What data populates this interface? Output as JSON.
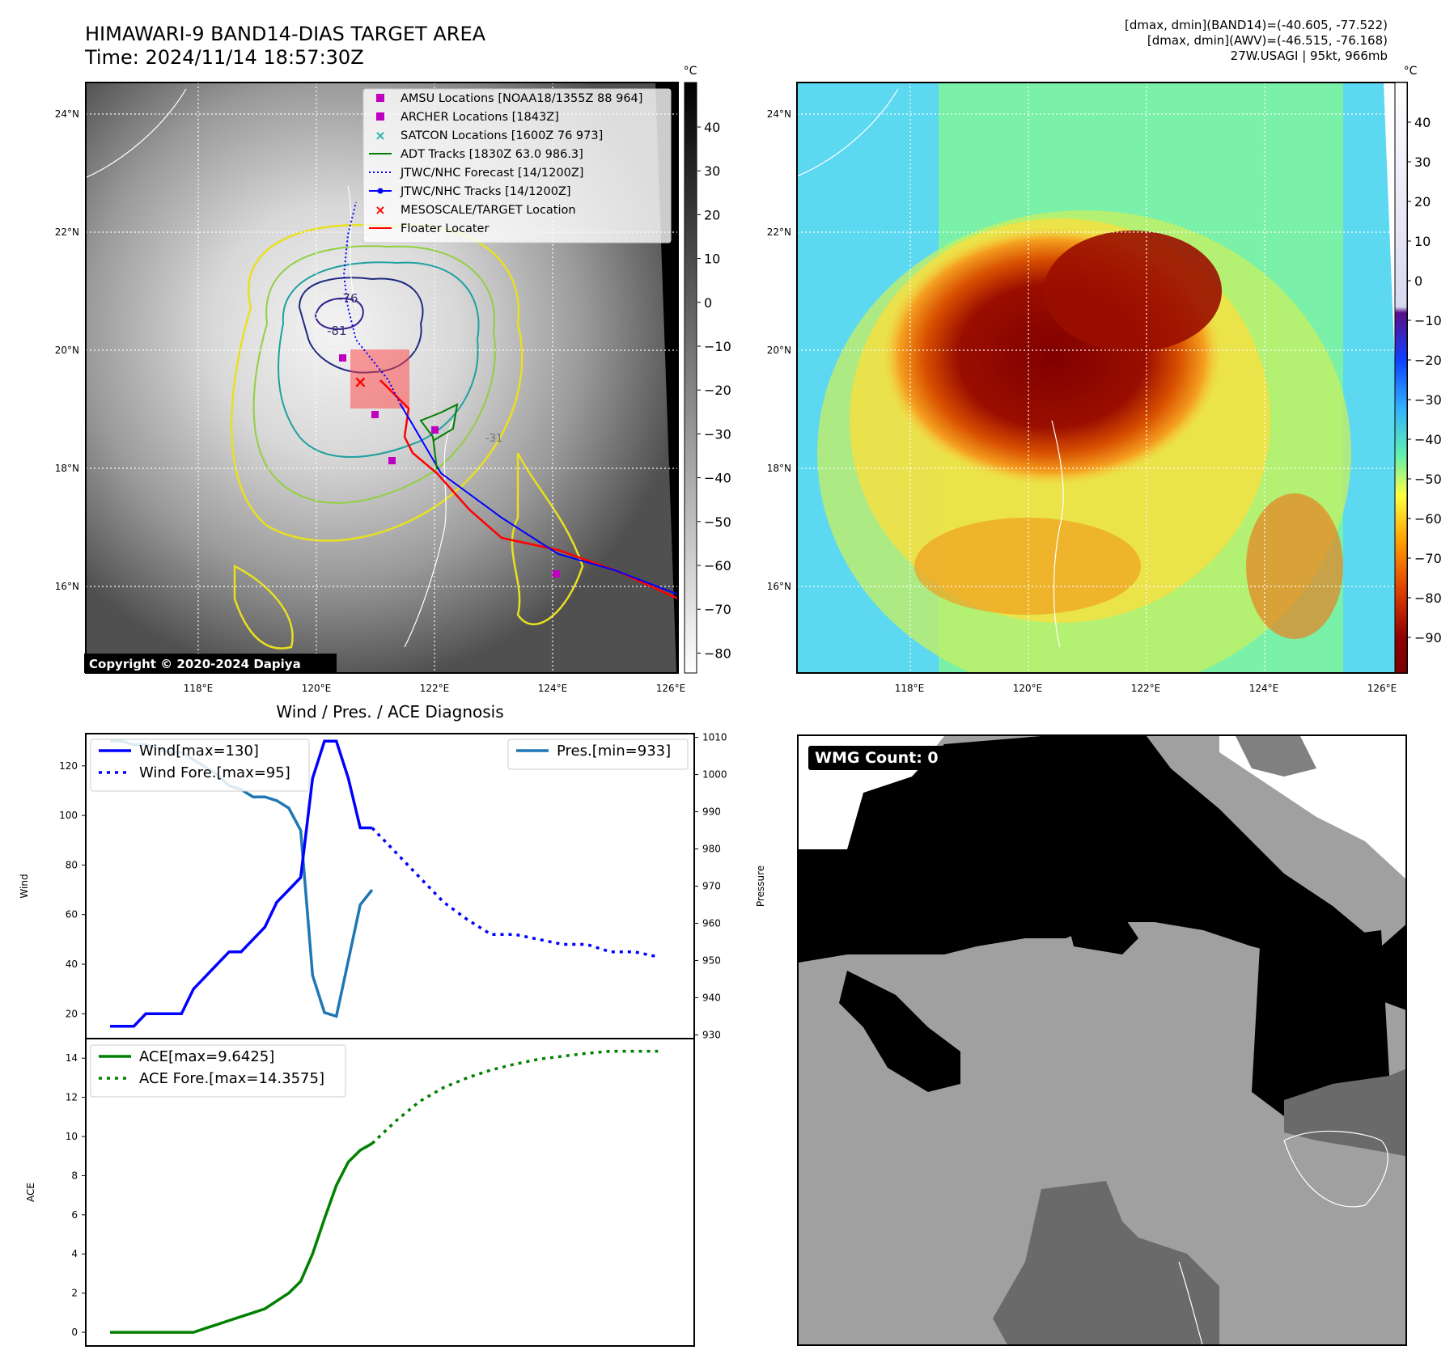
{
  "header": {
    "title_line1": "HIMAWARI-9 BAND14-DIAS TARGET AREA",
    "title_line2": "Time: 2024/11/14 18:57:30Z",
    "info_line1": "[dmax, dmin](BAND14)=(-40.605, -77.522)",
    "info_line2": "[dmax, dmin](AWV)=(-46.515, -76.168)",
    "info_line3": "27W.USAGI | 95kt, 966mb"
  },
  "maps": {
    "lon_ticks": [
      "118°E",
      "120°E",
      "122°E",
      "124°E",
      "126°E"
    ],
    "lat_ticks": [
      "24°N",
      "22°N",
      "20°N",
      "18°N",
      "16°N"
    ],
    "colorbar_unit": "°C",
    "left_colorbar_ticks": [
      "40",
      "30",
      "20",
      "10",
      "0",
      "−10",
      "−20",
      "−30",
      "−40",
      "−50",
      "−60",
      "−70",
      "−80"
    ],
    "right_colorbar_ticks": [
      "40",
      "30",
      "20",
      "10",
      "0",
      "−10",
      "−20",
      "−30",
      "−40",
      "−50",
      "−60",
      "−70",
      "−80",
      "−90"
    ],
    "copyright": "Copyright © 2020-2024 Dapiya",
    "contour_labels": [
      "-76",
      "-81",
      "-31"
    ],
    "legend": [
      {
        "label": "AMSU Locations [NOAA18/1355Z 88 964]",
        "color": "#c000c0",
        "marker": "square"
      },
      {
        "label": "ARCHER Locations [1843Z]",
        "color": "#c000c0",
        "marker": "square"
      },
      {
        "label": "SATCON Locations [1600Z 76 973]",
        "color": "#20b0b0",
        "marker": "x"
      },
      {
        "label": "ADT Tracks [1830Z 63.0 986.3]",
        "color": "#008000",
        "marker": "line"
      },
      {
        "label": "JTWC/NHC Forecast [14/1200Z]",
        "color": "#0000ff",
        "marker": "dotted"
      },
      {
        "label": "JTWC/NHC Tracks [14/1200Z]",
        "color": "#0000ff",
        "marker": "line-dot"
      },
      {
        "label": "MESOSCALE/TARGET Location",
        "color": "#ff0000",
        "marker": "x"
      },
      {
        "label": "Floater Locater",
        "color": "#ff0000",
        "marker": "line"
      }
    ]
  },
  "diagnosis": {
    "title": "Wind / Pres. / ACE Diagnosis",
    "wind_ylabel": "Wind",
    "pres_ylabel": "Pressure",
    "ace_ylabel": "ACE",
    "wind_legend": "Wind[max=130]",
    "wind_fore_legend": "Wind Fore.[max=95]",
    "pres_legend": "Pres.[min=933]",
    "ace_legend": "ACE[max=9.6425]",
    "ace_fore_legend": "ACE Fore.[max=14.3575]",
    "wind_ticks": [
      "120",
      "100",
      "80",
      "60",
      "40",
      "20"
    ],
    "pres_ticks": [
      "1010",
      "1000",
      "990",
      "980",
      "970",
      "960",
      "950",
      "940",
      "930"
    ],
    "ace_ticks": [
      "14",
      "12",
      "10",
      "8",
      "6",
      "4",
      "2",
      "0"
    ]
  },
  "wmg": {
    "label": "WMG Count: 0"
  },
  "chart_data": [
    {
      "type": "line",
      "title": "Wind / Pres. / ACE Diagnosis",
      "ylabel": "Wind",
      "ylim": [
        10,
        133
      ],
      "series": [
        {
          "name": "Wind[max=130]",
          "color": "#0000ff",
          "style": "solid",
          "x": [
            0,
            1,
            2,
            3,
            4,
            5,
            6,
            7,
            8,
            9,
            10,
            11,
            12,
            13,
            14,
            15,
            16,
            17,
            18,
            19,
            20,
            21,
            22
          ],
          "y": [
            15,
            15,
            15,
            20,
            20,
            20,
            20,
            30,
            35,
            40,
            45,
            45,
            50,
            55,
            65,
            70,
            75,
            115,
            130,
            130,
            115,
            95,
            95
          ]
        },
        {
          "name": "Wind Fore.[max=95]",
          "color": "#0000ff",
          "style": "dotted",
          "x": [
            22,
            24,
            26,
            28,
            30,
            32,
            34,
            36,
            38,
            40,
            42,
            44,
            46
          ],
          "y": [
            95,
            85,
            75,
            65,
            58,
            52,
            52,
            50,
            48,
            48,
            45,
            45,
            43
          ]
        }
      ]
    },
    {
      "type": "line",
      "ylabel": "Pressure",
      "ylim": [
        929,
        1011
      ],
      "series": [
        {
          "name": "Pres.[min=933]",
          "color": "#1f77b4",
          "style": "solid",
          "x": [
            0,
            1,
            2,
            3,
            4,
            5,
            6,
            7,
            8,
            9,
            10,
            11,
            12,
            13,
            14,
            15,
            16,
            17,
            18,
            19,
            20,
            21,
            22
          ],
          "y": [
            1009,
            1009,
            1008,
            1008,
            1007,
            1006,
            1006,
            1004,
            1002,
            1000,
            997,
            996,
            994,
            994,
            993,
            991,
            985,
            946,
            936,
            935,
            950,
            965,
            969
          ]
        }
      ]
    },
    {
      "type": "line",
      "ylabel": "ACE",
      "ylim": [
        -0.7,
        15
      ],
      "series": [
        {
          "name": "ACE[max=9.6425]",
          "color": "#008000",
          "style": "solid",
          "x": [
            0,
            2,
            4,
            6,
            7,
            8,
            9,
            10,
            11,
            12,
            13,
            14,
            15,
            16,
            17,
            18,
            19,
            20,
            21,
            22
          ],
          "y": [
            0,
            0,
            0,
            0,
            0,
            0.2,
            0.4,
            0.6,
            0.8,
            1.0,
            1.2,
            1.6,
            2.0,
            2.6,
            4.0,
            5.8,
            7.5,
            8.7,
            9.3,
            9.6425
          ]
        },
        {
          "name": "ACE Fore.[max=14.3575]",
          "color": "#008000",
          "style": "dotted",
          "x": [
            22,
            24,
            26,
            28,
            30,
            32,
            34,
            36,
            38,
            40,
            42,
            44,
            46
          ],
          "y": [
            9.6425,
            10.8,
            11.8,
            12.5,
            13.0,
            13.4,
            13.7,
            13.95,
            14.1,
            14.25,
            14.3575,
            14.3575,
            14.3575
          ]
        }
      ]
    }
  ]
}
